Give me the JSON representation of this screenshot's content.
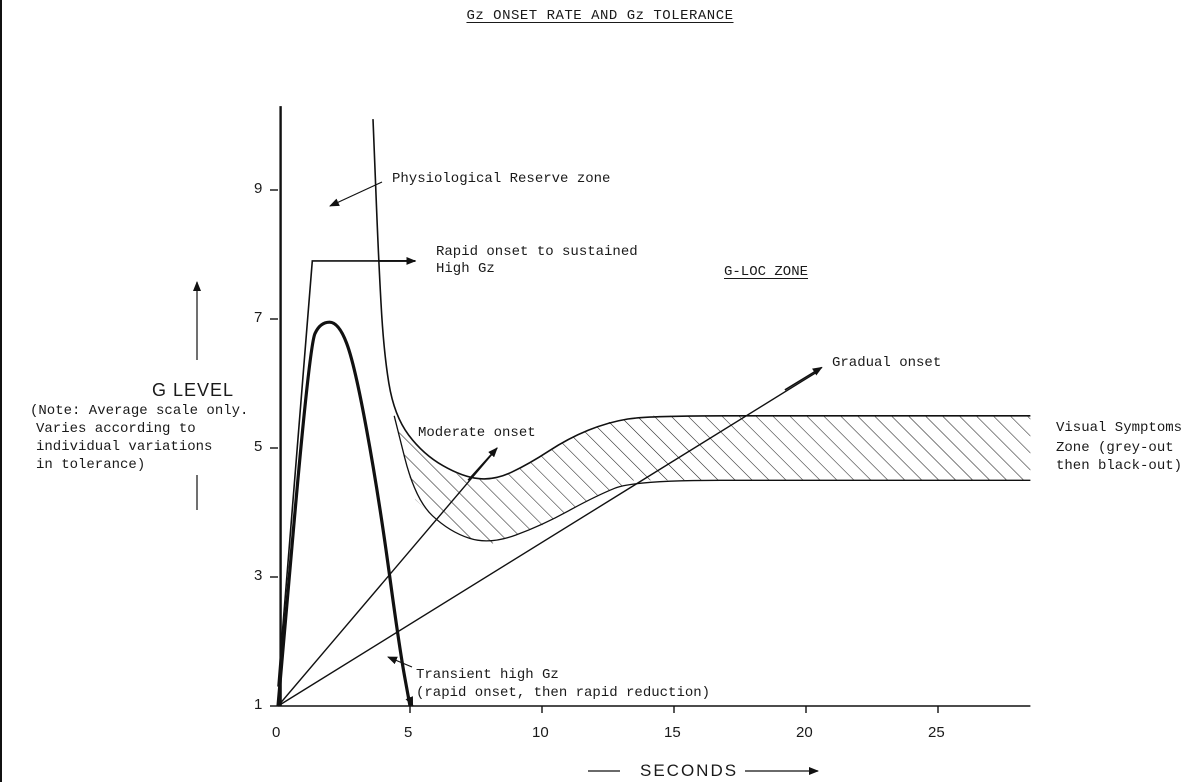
{
  "title": "Gz ONSET RATE AND Gz TOLERANCE",
  "labels": {
    "physiological_reserve": "Physiological Reserve zone",
    "rapid_onset_line1": "Rapid onset to sustained",
    "rapid_onset_line2": "High Gz",
    "gloc_zone": "G-LOC ZONE",
    "gradual_onset": "Gradual onset",
    "moderate_onset": "Moderate onset",
    "visual_line1": "Visual Symptoms",
    "visual_line2": "Zone (grey-out",
    "visual_line3": "then black-out)",
    "transient_line1": "Transient high Gz",
    "transient_line2": "(rapid onset, then rapid reduction)",
    "g_level": "G LEVEL",
    "note_line1": "(Note: Average scale only.",
    "note_line2": "Varies according to",
    "note_line3": "individual variations",
    "note_line4": "in tolerance)",
    "seconds": "SECONDS"
  },
  "chart_data": {
    "type": "line",
    "xlabel": "SECONDS",
    "ylabel": "G LEVEL",
    "xlim": [
      0,
      28.5
    ],
    "ylim": [
      1,
      10.3
    ],
    "x_ticks": [
      "0",
      "5",
      "10",
      "15",
      "20",
      "25"
    ],
    "y_ticks": [
      "1",
      "3",
      "5",
      "7",
      "9"
    ],
    "series": [
      {
        "name": "Physiological Reserve zone",
        "points": [
          [
            3.6,
            10.1
          ],
          [
            3.8,
            8.0
          ],
          [
            4.0,
            6.5
          ],
          [
            4.4,
            5.5
          ],
          [
            5.5,
            4.9
          ],
          [
            7.0,
            4.55
          ],
          [
            8.2,
            4.5
          ],
          [
            9.5,
            4.75
          ],
          [
            11,
            5.15
          ],
          [
            12.5,
            5.4
          ],
          [
            14,
            5.5
          ],
          [
            20,
            5.5
          ],
          [
            28.5,
            5.5
          ]
        ]
      },
      {
        "name": "Rapid onset to sustained High Gz",
        "points": [
          [
            0,
            1.3
          ],
          [
            1.3,
            7.9
          ],
          [
            5.2,
            7.9
          ]
        ]
      },
      {
        "name": "Transient high Gz",
        "points": [
          [
            0,
            1
          ],
          [
            1.2,
            6.6
          ],
          [
            1.6,
            6.95
          ],
          [
            2.3,
            6.95
          ],
          [
            2.9,
            6.3
          ],
          [
            3.8,
            4.3
          ],
          [
            4.6,
            1.9
          ],
          [
            5.0,
            1.0
          ]
        ]
      },
      {
        "name": "Moderate onset",
        "points": [
          [
            0,
            1
          ],
          [
            8.1,
            4.9
          ]
        ]
      },
      {
        "name": "Gradual onset",
        "points": [
          [
            0,
            1
          ],
          [
            20.5,
            6.2
          ]
        ]
      },
      {
        "name": "",
        "points": [
          [
            0.1,
            10.3
          ],
          [
            0.1,
            1
          ]
        ]
      },
      {
        "name": "",
        "points": [
          [
            4.4,
            5.5
          ],
          [
            5.2,
            4.2
          ],
          [
            6.5,
            3.7
          ],
          [
            8.0,
            3.5
          ],
          [
            10,
            3.8
          ],
          [
            12,
            4.25
          ],
          [
            13.5,
            4.5
          ],
          [
            20,
            4.5
          ],
          [
            28.5,
            4.5
          ]
        ]
      }
    ],
    "shaded_region": "hatched band between 4.5 G and 5.5 G (Visual Symptoms Zone)"
  }
}
